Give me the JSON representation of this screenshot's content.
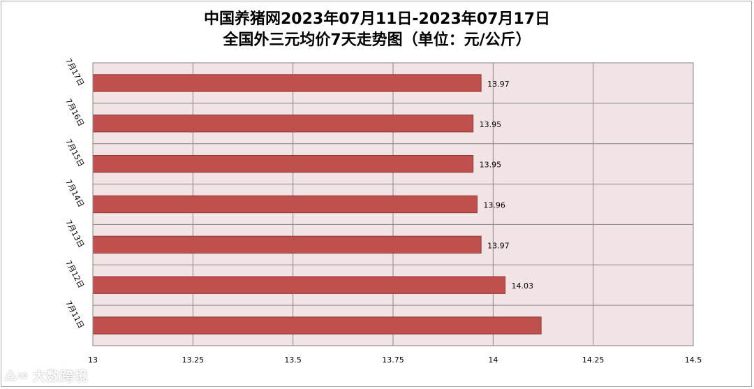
{
  "chart_data": {
    "type": "bar",
    "orientation": "horizontal",
    "title_line1": "中国养猪网2023年07月11日-2023年07月17日",
    "title_line2": "全国外三元均价7天走势图（单位：元/公斤）",
    "categories": [
      "7月17日",
      "7月16日",
      "7月15日",
      "7月14日",
      "7月13日",
      "7月12日",
      "7月11日"
    ],
    "values": [
      13.97,
      13.95,
      13.95,
      13.96,
      13.97,
      14.03,
      14.12
    ],
    "data_labels": [
      "13.97",
      "13.95",
      "13.95",
      "13.96",
      "13.97",
      "14.03",
      ""
    ],
    "x_ticks": [
      "13",
      "13.25",
      "13.5",
      "13.75",
      "14",
      "14.25",
      "14.5"
    ],
    "xlim": [
      13,
      14.5
    ],
    "grid": true,
    "legend": "none",
    "colors": {
      "bar": "#c0504d",
      "bar_border": "#8c3836",
      "plot_background": "#f2e4e4",
      "grid": "#868686"
    }
  },
  "watermark": {
    "logo": "⟁∞",
    "text": "大数跨境"
  }
}
